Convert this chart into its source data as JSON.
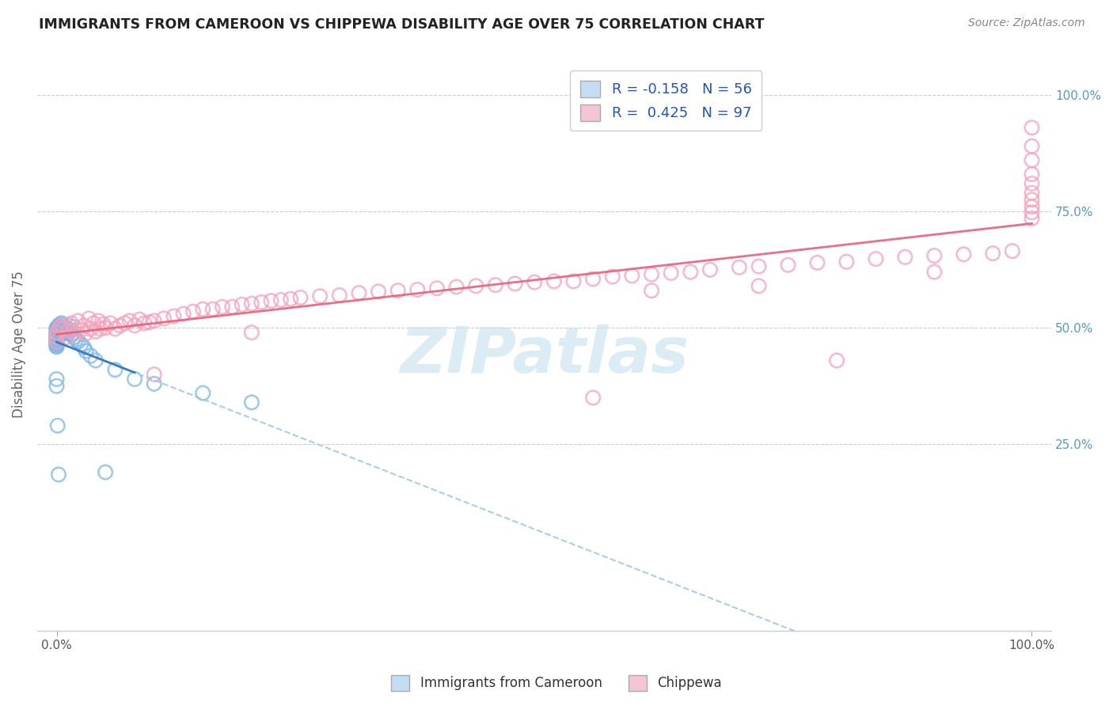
{
  "title": "IMMIGRANTS FROM CAMEROON VS CHIPPEWA DISABILITY AGE OVER 75 CORRELATION CHART",
  "source": "Source: ZipAtlas.com",
  "ylabel": "Disability Age Over 75",
  "legend_label1": "Immigrants from Cameroon",
  "legend_label2": "Chippewa",
  "R1": -0.158,
  "N1": 56,
  "R2": 0.425,
  "N2": 97,
  "blue_marker_color": "#7ab8e8",
  "pink_marker_color": "#f5a0bb",
  "blue_line_color": "#3a7abf",
  "blue_dash_color": "#9ec8e8",
  "pink_line_color": "#e8607a",
  "legend_blue_face": "#c5dcf5",
  "legend_pink_face": "#f5c5d5",
  "watermark_color": "#cce4f0",
  "right_tick_color": "#5599cc",
  "blue_x": [
    0.0,
    0.0,
    0.0,
    0.0,
    0.0,
    0.0,
    0.0,
    0.0,
    0.0,
    0.0,
    0.0,
    0.0,
    0.0,
    0.0,
    0.0,
    0.0,
    0.0,
    0.0,
    0.0,
    0.0,
    0.002,
    0.002,
    0.003,
    0.003,
    0.004,
    0.004,
    0.005,
    0.005,
    0.006,
    0.007,
    0.008,
    0.009,
    0.01,
    0.01,
    0.012,
    0.013,
    0.015,
    0.015,
    0.018,
    0.02,
    0.022,
    0.025,
    0.028,
    0.03,
    0.035,
    0.04,
    0.05,
    0.06,
    0.08,
    0.1,
    0.15,
    0.2,
    0.0,
    0.0,
    0.001,
    0.002
  ],
  "blue_y": [
    0.5,
    0.498,
    0.495,
    0.492,
    0.49,
    0.488,
    0.485,
    0.483,
    0.48,
    0.478,
    0.476,
    0.474,
    0.472,
    0.47,
    0.468,
    0.466,
    0.465,
    0.463,
    0.461,
    0.459,
    0.5,
    0.505,
    0.498,
    0.502,
    0.496,
    0.508,
    0.494,
    0.51,
    0.492,
    0.488,
    0.49,
    0.495,
    0.492,
    0.5,
    0.488,
    0.505,
    0.485,
    0.495,
    0.48,
    0.475,
    0.47,
    0.465,
    0.458,
    0.45,
    0.44,
    0.43,
    0.19,
    0.41,
    0.39,
    0.38,
    0.36,
    0.34,
    0.39,
    0.375,
    0.29,
    0.185
  ],
  "pink_x": [
    0.0,
    0.0,
    0.0,
    0.003,
    0.005,
    0.007,
    0.01,
    0.012,
    0.015,
    0.018,
    0.02,
    0.022,
    0.025,
    0.028,
    0.03,
    0.033,
    0.035,
    0.038,
    0.04,
    0.043,
    0.045,
    0.048,
    0.05,
    0.055,
    0.06,
    0.065,
    0.07,
    0.075,
    0.08,
    0.085,
    0.09,
    0.095,
    0.1,
    0.11,
    0.12,
    0.13,
    0.14,
    0.15,
    0.16,
    0.17,
    0.18,
    0.19,
    0.2,
    0.21,
    0.22,
    0.23,
    0.24,
    0.25,
    0.27,
    0.29,
    0.31,
    0.33,
    0.35,
    0.37,
    0.39,
    0.41,
    0.43,
    0.45,
    0.47,
    0.49,
    0.51,
    0.53,
    0.55,
    0.57,
    0.59,
    0.61,
    0.63,
    0.65,
    0.67,
    0.7,
    0.72,
    0.75,
    0.78,
    0.81,
    0.84,
    0.87,
    0.9,
    0.93,
    0.96,
    0.98,
    1.0,
    1.0,
    1.0,
    1.0,
    1.0,
    1.0,
    1.0,
    1.0,
    1.0,
    1.0,
    0.61,
    0.72,
    0.55,
    0.8,
    0.9,
    0.1,
    0.2
  ],
  "pink_y": [
    0.49,
    0.48,
    0.47,
    0.5,
    0.505,
    0.498,
    0.48,
    0.495,
    0.51,
    0.502,
    0.488,
    0.515,
    0.495,
    0.505,
    0.488,
    0.52,
    0.498,
    0.51,
    0.492,
    0.515,
    0.498,
    0.508,
    0.5,
    0.51,
    0.498,
    0.505,
    0.51,
    0.515,
    0.505,
    0.518,
    0.51,
    0.512,
    0.515,
    0.52,
    0.525,
    0.53,
    0.535,
    0.54,
    0.54,
    0.545,
    0.545,
    0.55,
    0.552,
    0.555,
    0.558,
    0.56,
    0.562,
    0.565,
    0.568,
    0.57,
    0.575,
    0.578,
    0.58,
    0.582,
    0.585,
    0.588,
    0.59,
    0.592,
    0.595,
    0.598,
    0.6,
    0.6,
    0.605,
    0.61,
    0.612,
    0.615,
    0.618,
    0.62,
    0.625,
    0.63,
    0.632,
    0.635,
    0.64,
    0.642,
    0.648,
    0.652,
    0.655,
    0.658,
    0.66,
    0.665,
    0.93,
    0.89,
    0.86,
    0.83,
    0.81,
    0.79,
    0.775,
    0.76,
    0.748,
    0.735,
    0.58,
    0.59,
    0.35,
    0.43,
    0.62,
    0.4,
    0.49
  ],
  "ylim_min": -0.15,
  "ylim_max": 1.08,
  "xlim_min": -0.02,
  "xlim_max": 1.02
}
